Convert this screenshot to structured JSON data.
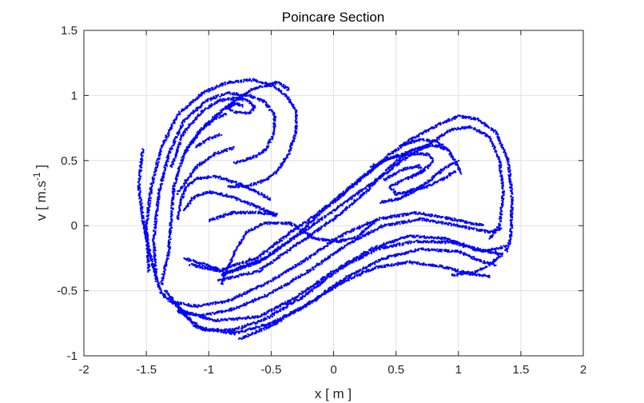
{
  "chart_data": {
    "type": "scatter",
    "title": "Poincare Section",
    "xlabel": "x  [ m ]",
    "ylabel_base": "v  [ m.s",
    "ylabel_sup": "-1",
    "ylabel_end": " ]",
    "xlim": [
      -2,
      2
    ],
    "ylim": [
      -1,
      1.5
    ],
    "xticks": [
      -2,
      -1.5,
      -1,
      -0.5,
      0,
      0.5,
      1,
      1.5,
      2
    ],
    "yticks": [
      -1,
      -0.5,
      0,
      0.5,
      1,
      1.5
    ],
    "xtick_labels": [
      "-2",
      "-1.5",
      "-1",
      "-0.5",
      "0",
      "0.5",
      "1",
      "1.5",
      "2"
    ],
    "ytick_labels": [
      "-1",
      "-0.5",
      "0",
      "0.5",
      "1",
      "1.5"
    ],
    "grid": true,
    "marker_color": "#0000ff",
    "strands": [
      [
        [
          -1.53,
          0.58
        ],
        [
          -1.56,
          0.3
        ],
        [
          -1.52,
          0.0
        ],
        [
          -1.45,
          -0.3
        ],
        [
          -1.38,
          -0.52
        ],
        [
          -1.2,
          -0.66
        ],
        [
          -0.95,
          -0.73
        ],
        [
          -0.6,
          -0.7
        ],
        [
          -0.3,
          -0.55
        ],
        [
          0.0,
          -0.35
        ],
        [
          0.3,
          -0.18
        ],
        [
          0.6,
          -0.08
        ],
        [
          0.9,
          -0.1
        ],
        [
          1.15,
          -0.18
        ],
        [
          1.35,
          -0.22
        ]
      ],
      [
        [
          -1.35,
          -0.5
        ],
        [
          -1.1,
          -0.78
        ],
        [
          -0.8,
          -0.83
        ],
        [
          -0.5,
          -0.75
        ],
        [
          -0.2,
          -0.6
        ],
        [
          0.1,
          -0.4
        ],
        [
          0.4,
          -0.25
        ],
        [
          0.7,
          -0.18
        ],
        [
          1.0,
          -0.2
        ],
        [
          1.2,
          -0.28
        ],
        [
          1.3,
          -0.3
        ]
      ],
      [
        [
          -1.25,
          -0.64
        ],
        [
          -1.05,
          -0.8
        ],
        [
          -0.8,
          -0.8
        ],
        [
          -0.55,
          -0.72
        ],
        [
          -0.25,
          -0.55
        ],
        [
          0.05,
          -0.33
        ],
        [
          0.35,
          -0.18
        ],
        [
          0.65,
          -0.12
        ],
        [
          0.95,
          -0.13
        ],
        [
          1.2,
          -0.2
        ],
        [
          1.38,
          -0.16
        ]
      ],
      [
        [
          -0.75,
          -0.87
        ],
        [
          -0.5,
          -0.77
        ],
        [
          -0.2,
          -0.6
        ],
        [
          0.1,
          -0.42
        ],
        [
          0.35,
          -0.32
        ],
        [
          0.6,
          -0.28
        ],
        [
          0.85,
          -0.31
        ],
        [
          1.1,
          -0.37
        ],
        [
          1.25,
          -0.39
        ]
      ],
      [
        [
          -1.25,
          -0.66
        ],
        [
          -1.05,
          -0.69
        ],
        [
          -0.8,
          -0.64
        ],
        [
          -0.5,
          -0.52
        ],
        [
          -0.2,
          -0.35
        ],
        [
          0.1,
          -0.15
        ],
        [
          0.4,
          0.0
        ],
        [
          0.7,
          0.05
        ],
        [
          1.0,
          0.0
        ],
        [
          1.25,
          -0.05
        ],
        [
          1.35,
          -0.02
        ]
      ],
      [
        [
          -1.3,
          -0.58
        ],
        [
          -1.1,
          -0.62
        ],
        [
          -0.85,
          -0.58
        ],
        [
          -0.55,
          -0.45
        ],
        [
          -0.25,
          -0.28
        ],
        [
          0.05,
          -0.08
        ],
        [
          0.35,
          0.05
        ],
        [
          0.65,
          0.1
        ],
        [
          0.95,
          0.05
        ],
        [
          1.2,
          0.0
        ]
      ],
      [
        [
          -1.38,
          -0.45
        ],
        [
          -1.32,
          -0.2
        ],
        [
          -1.3,
          0.05
        ],
        [
          -1.28,
          0.3
        ],
        [
          -1.2,
          0.55
        ],
        [
          -1.05,
          0.75
        ],
        [
          -0.85,
          0.92
        ],
        [
          -0.65,
          1.05
        ],
        [
          -0.45,
          1.1
        ],
        [
          -0.35,
          1.04
        ]
      ],
      [
        [
          -1.48,
          -0.35
        ],
        [
          -1.5,
          0.0
        ],
        [
          -1.46,
          0.3
        ],
        [
          -1.38,
          0.6
        ],
        [
          -1.25,
          0.85
        ],
        [
          -1.05,
          1.02
        ],
        [
          -0.85,
          1.1
        ],
        [
          -0.65,
          1.12
        ],
        [
          -0.5,
          1.08
        ],
        [
          -0.38,
          1.0
        ],
        [
          -0.3,
          0.88
        ],
        [
          -0.3,
          0.72
        ],
        [
          -0.36,
          0.55
        ],
        [
          -0.45,
          0.42
        ],
        [
          -0.55,
          0.35
        ],
        [
          -0.7,
          0.3
        ],
        [
          -0.85,
          0.3
        ]
      ],
      [
        [
          -1.42,
          -0.42
        ],
        [
          -1.44,
          -0.1
        ],
        [
          -1.4,
          0.25
        ],
        [
          -1.32,
          0.55
        ],
        [
          -1.2,
          0.8
        ],
        [
          -1.02,
          0.96
        ],
        [
          -0.85,
          1.02
        ],
        [
          -0.68,
          1.0
        ],
        [
          -0.55,
          0.95
        ],
        [
          -0.47,
          0.84
        ],
        [
          -0.48,
          0.7
        ],
        [
          -0.55,
          0.58
        ],
        [
          -0.65,
          0.52
        ],
        [
          -0.8,
          0.48
        ]
      ],
      [
        [
          -1.3,
          0.45
        ],
        [
          -1.2,
          0.72
        ],
        [
          -1.05,
          0.88
        ],
        [
          -0.92,
          0.96
        ],
        [
          -0.8,
          0.98
        ],
        [
          -0.68,
          0.96
        ],
        [
          -0.63,
          0.91
        ],
        [
          -0.68,
          0.86
        ],
        [
          -0.78,
          0.87
        ],
        [
          -0.85,
          0.9
        ],
        [
          -0.78,
          0.94
        ],
        [
          -0.72,
          0.92
        ]
      ],
      [
        [
          -1.2,
          0.55
        ],
        [
          -1.08,
          0.72
        ],
        [
          -0.95,
          0.82
        ],
        [
          -0.85,
          0.86
        ]
      ],
      [
        [
          -1.1,
          0.6
        ],
        [
          -1.02,
          0.66
        ],
        [
          -0.9,
          0.7
        ]
      ],
      [
        [
          -1.25,
          0.05
        ],
        [
          -1.22,
          0.2
        ],
        [
          -1.18,
          0.3
        ],
        [
          -1.1,
          0.36
        ],
        [
          -0.95,
          0.38
        ],
        [
          -0.75,
          0.32
        ],
        [
          -0.6,
          0.25
        ],
        [
          -0.5,
          0.2
        ]
      ],
      [
        [
          -1.2,
          0.12
        ],
        [
          -1.12,
          0.22
        ],
        [
          -1.0,
          0.26
        ],
        [
          -0.85,
          0.23
        ],
        [
          -0.7,
          0.18
        ],
        [
          -0.55,
          0.12
        ],
        [
          -0.45,
          0.08
        ]
      ],
      [
        [
          -1.0,
          0.04
        ],
        [
          -0.8,
          0.1
        ],
        [
          -0.6,
          0.1
        ],
        [
          -0.45,
          0.08
        ]
      ],
      [
        [
          -0.92,
          -0.42
        ],
        [
          -0.6,
          -0.35
        ],
        [
          -0.3,
          -0.15
        ],
        [
          0.0,
          0.05
        ],
        [
          0.25,
          0.25
        ],
        [
          0.45,
          0.45
        ],
        [
          0.62,
          0.58
        ],
        [
          0.8,
          0.62
        ],
        [
          0.92,
          0.58
        ]
      ],
      [
        [
          -0.9,
          -0.38
        ],
        [
          -0.6,
          -0.28
        ],
        [
          -0.3,
          -0.08
        ],
        [
          -0.05,
          0.15
        ],
        [
          0.2,
          0.35
        ],
        [
          0.4,
          0.5
        ],
        [
          0.55,
          0.55
        ],
        [
          0.7,
          0.6
        ]
      ],
      [
        [
          -1.2,
          -0.25
        ],
        [
          -0.9,
          -0.34
        ],
        [
          -0.6,
          -0.24
        ],
        [
          -0.3,
          -0.02
        ],
        [
          0.0,
          0.18
        ],
        [
          0.25,
          0.38
        ],
        [
          0.45,
          0.55
        ],
        [
          0.65,
          0.68
        ],
        [
          0.85,
          0.78
        ],
        [
          1.0,
          0.84
        ],
        [
          1.15,
          0.82
        ],
        [
          1.3,
          0.72
        ],
        [
          1.4,
          0.5
        ],
        [
          1.43,
          0.2
        ],
        [
          1.42,
          -0.1
        ],
        [
          1.38,
          -0.2
        ]
      ],
      [
        [
          -1.15,
          -0.3
        ],
        [
          -0.85,
          -0.36
        ],
        [
          -0.55,
          -0.25
        ],
        [
          -0.25,
          -0.05
        ],
        [
          0.05,
          0.15
        ],
        [
          0.3,
          0.32
        ],
        [
          0.55,
          0.5
        ],
        [
          0.75,
          0.62
        ],
        [
          0.95,
          0.74
        ],
        [
          1.1,
          0.76
        ],
        [
          1.25,
          0.68
        ],
        [
          1.33,
          0.5
        ],
        [
          1.36,
          0.25
        ],
        [
          1.33,
          0.0
        ],
        [
          1.25,
          -0.1
        ]
      ],
      [
        [
          0.3,
          0.45
        ],
        [
          0.45,
          0.52
        ],
        [
          0.6,
          0.55
        ],
        [
          0.75,
          0.55
        ],
        [
          0.8,
          0.5
        ],
        [
          0.72,
          0.42
        ],
        [
          0.58,
          0.36
        ],
        [
          0.45,
          0.3
        ],
        [
          0.5,
          0.24
        ],
        [
          0.62,
          0.27
        ],
        [
          0.75,
          0.3
        ],
        [
          0.88,
          0.36
        ],
        [
          0.98,
          0.42
        ]
      ],
      [
        [
          0.4,
          0.35
        ],
        [
          0.55,
          0.43
        ],
        [
          0.68,
          0.46
        ],
        [
          0.72,
          0.42
        ],
        [
          0.62,
          0.37
        ]
      ],
      [
        [
          0.38,
          0.18
        ],
        [
          0.5,
          0.2
        ],
        [
          0.62,
          0.25
        ],
        [
          0.76,
          0.34
        ],
        [
          0.9,
          0.45
        ],
        [
          1.0,
          0.5
        ]
      ],
      [
        [
          0.55,
          0.62
        ],
        [
          0.7,
          0.66
        ],
        [
          0.82,
          0.65
        ],
        [
          0.92,
          0.58
        ],
        [
          1.0,
          0.45
        ],
        [
          1.02,
          0.4
        ]
      ],
      [
        [
          -0.9,
          -0.45
        ],
        [
          -0.8,
          -0.22
        ],
        [
          -0.7,
          -0.05
        ],
        [
          -0.55,
          0.02
        ],
        [
          -0.35,
          0.02
        ],
        [
          -0.15,
          -0.1
        ],
        [
          0.05,
          -0.12
        ],
        [
          0.2,
          -0.08
        ],
        [
          0.35,
          0.05
        ]
      ],
      [
        [
          0.95,
          -0.38
        ],
        [
          1.05,
          -0.37
        ],
        [
          1.15,
          -0.35
        ],
        [
          1.25,
          -0.3
        ],
        [
          1.35,
          -0.22
        ]
      ],
      [
        [
          -1.25,
          0.25
        ],
        [
          -1.1,
          0.45
        ],
        [
          -0.95,
          0.55
        ],
        [
          -0.8,
          0.6
        ]
      ]
    ]
  }
}
